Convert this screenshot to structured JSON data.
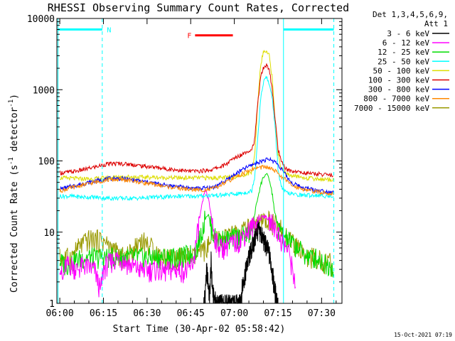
{
  "chart_data": {
    "type": "line",
    "title": "RHESSI Observing Summary Count Rates, Corrected",
    "xlabel": "Start Time (30-Apr-02 05:58:42)",
    "ylabel_prefix": "Corrected Count Rate (s",
    "ylabel_sup": "-1",
    "ylabel_suffix": " detector",
    "ylabel_suffix_sup": "-1",
    "ylabel_close": ")",
    "yscale": "log",
    "xlim": [
      359,
      457
    ],
    "ylim": [
      1,
      10000
    ],
    "x_ticks": [
      {
        "t": 360,
        "label": "06:00"
      },
      {
        "t": 375,
        "label": "06:15"
      },
      {
        "t": 390,
        "label": "06:30"
      },
      {
        "t": 405,
        "label": "06:45"
      },
      {
        "t": 420,
        "label": "07:00"
      },
      {
        "t": 435,
        "label": "07:15"
      },
      {
        "t": 450,
        "label": "07:30"
      }
    ],
    "y_ticks": [
      {
        "v": 1,
        "label": "1"
      },
      {
        "v": 10,
        "label": "10"
      },
      {
        "v": 100,
        "label": "100"
      },
      {
        "v": 1000,
        "label": "1000"
      },
      {
        "v": 10000,
        "label": "10000"
      }
    ],
    "legend_header": [
      "Det 1,3,4,5,6,9,",
      "Att 1"
    ],
    "series": [
      {
        "name": "3 - 6 keV",
        "color": "#000000",
        "x": [
          409.5,
          410,
          410.5,
          411,
          411.5,
          412,
          412.5,
          413,
          414,
          416,
          418,
          420,
          421,
          422,
          422.5,
          423,
          424,
          425,
          426,
          427,
          428,
          429,
          430,
          431,
          432,
          433,
          433.5,
          434,
          435
        ],
        "y": [
          1,
          1.5,
          3,
          2,
          1.2,
          4,
          1.5,
          1.2,
          1,
          1,
          1,
          1,
          1,
          1,
          1.5,
          2,
          3,
          4.5,
          6,
          8,
          11,
          10,
          8,
          6.5,
          5,
          3,
          2,
          1.5,
          1
        ]
      },
      {
        "name": "6 - 12 keV",
        "color": "#ff00ff",
        "x": [
          360,
          361,
          362,
          364,
          366,
          368,
          370,
          372,
          374,
          375,
          376,
          378,
          380,
          382,
          384,
          386,
          388,
          390,
          392,
          394,
          396,
          398,
          400,
          402,
          404,
          406,
          407,
          408,
          409,
          410,
          411,
          412,
          413,
          414,
          416,
          418,
          420,
          422,
          424,
          426,
          428,
          430,
          432,
          434,
          436,
          437,
          438,
          439,
          440,
          441
        ],
        "y": [
          4,
          2,
          3.5,
          3.5,
          3,
          3.5,
          3.2,
          3,
          1.5,
          3,
          3.5,
          4,
          4.5,
          4,
          3.5,
          3.2,
          3,
          3,
          3,
          3,
          2.8,
          3,
          3,
          3,
          2.8,
          4,
          8,
          15,
          25,
          40,
          30,
          18,
          10,
          7,
          6,
          7,
          7,
          8,
          10,
          12,
          14,
          17,
          15,
          12,
          8,
          7,
          6,
          5,
          3,
          2
        ]
      },
      {
        "name": "12 - 25 keV",
        "color": "#00dd00",
        "x": [
          360,
          362,
          365,
          368,
          370,
          372,
          374,
          376,
          378,
          380,
          382,
          384,
          386,
          388,
          390,
          392,
          394,
          396,
          398,
          400,
          402,
          404,
          406,
          407,
          408,
          409,
          410,
          411,
          412,
          413,
          414,
          416,
          418,
          420,
          422,
          424,
          426,
          427,
          428,
          429,
          430,
          431,
          432,
          433,
          434,
          435,
          436,
          438,
          440,
          442,
          444,
          446,
          448,
          450,
          452,
          454
        ],
        "y": [
          4,
          3.5,
          4,
          4.5,
          4.5,
          4.5,
          4.5,
          4.5,
          4.5,
          4.5,
          4.5,
          4.5,
          4.5,
          4.5,
          4.5,
          4.5,
          4.5,
          4.5,
          4.5,
          4.5,
          4.5,
          5,
          5,
          6,
          8,
          11,
          16,
          18,
          12,
          9,
          8,
          8,
          8,
          8.5,
          9,
          9,
          10,
          18,
          30,
          45,
          60,
          65,
          55,
          35,
          18,
          12,
          10,
          8,
          7,
          6,
          5,
          4.5,
          4.5,
          4,
          3.5,
          3.5
        ]
      },
      {
        "name": "25 - 50 keV",
        "color": "#00ffff",
        "x": [
          360,
          364,
          368,
          372,
          376,
          380,
          384,
          388,
          392,
          396,
          400,
          404,
          408,
          412,
          416,
          418,
          420,
          422,
          424,
          426,
          427,
          428,
          429,
          430,
          431,
          432,
          433,
          434,
          435,
          436,
          437,
          438,
          440,
          444,
          448,
          452,
          454
        ],
        "y": [
          32,
          32,
          31,
          31,
          30,
          30,
          30,
          30,
          31,
          31,
          32,
          32,
          32,
          33,
          33,
          34,
          34,
          35,
          36,
          38,
          60,
          200,
          700,
          1300,
          1500,
          1200,
          800,
          300,
          80,
          45,
          38,
          36,
          34,
          33,
          33,
          32,
          32
        ]
      },
      {
        "name": "50 - 100 keV",
        "color": "#dddd00",
        "x": [
          360,
          364,
          368,
          372,
          376,
          380,
          384,
          388,
          392,
          396,
          400,
          404,
          408,
          412,
          416,
          418,
          420,
          422,
          424,
          426,
          427,
          428,
          429,
          430,
          431,
          432,
          433,
          434,
          435,
          436,
          437,
          438,
          440,
          444,
          448,
          452,
          454
        ],
        "y": [
          58,
          57,
          56,
          56,
          58,
          60,
          60,
          59,
          59,
          58,
          58,
          58,
          58,
          58,
          58,
          59,
          60,
          62,
          65,
          70,
          120,
          600,
          2200,
          3400,
          3500,
          3000,
          1500,
          400,
          130,
          80,
          70,
          65,
          62,
          58,
          56,
          55,
          55
        ]
      },
      {
        "name": "100 - 300 keV",
        "color": "#dd0000",
        "x": [
          360,
          364,
          368,
          372,
          376,
          380,
          384,
          388,
          392,
          396,
          400,
          404,
          408,
          412,
          416,
          418,
          420,
          422,
          424,
          426,
          427,
          428,
          429,
          430,
          431,
          432,
          433,
          434,
          435,
          436,
          437,
          438,
          440,
          444,
          448,
          452,
          454
        ],
        "y": [
          68,
          70,
          75,
          82,
          90,
          92,
          90,
          85,
          82,
          78,
          75,
          72,
          72,
          75,
          85,
          95,
          110,
          120,
          135,
          145,
          200,
          600,
          1500,
          2000,
          2200,
          2000,
          1000,
          400,
          150,
          100,
          85,
          75,
          72,
          68,
          66,
          64,
          63
        ]
      },
      {
        "name": "300 - 800 keV",
        "color": "#0000ff",
        "x": [
          360,
          364,
          368,
          372,
          376,
          380,
          384,
          388,
          392,
          396,
          400,
          404,
          408,
          412,
          414,
          416,
          418,
          420,
          422,
          424,
          426,
          428,
          430,
          432,
          434,
          436,
          438,
          440,
          444,
          448,
          452,
          454
        ],
        "y": [
          40,
          44,
          48,
          52,
          56,
          57,
          55,
          52,
          49,
          46,
          44,
          42,
          41,
          42,
          45,
          50,
          56,
          64,
          72,
          80,
          88,
          95,
          102,
          105,
          98,
          80,
          60,
          48,
          42,
          39,
          37,
          37
        ]
      },
      {
        "name": "800 - 7000 keV",
        "color": "#ff8800",
        "x": [
          360,
          364,
          368,
          372,
          376,
          380,
          384,
          388,
          392,
          396,
          400,
          404,
          408,
          412,
          414,
          416,
          418,
          420,
          422,
          424,
          426,
          428,
          430,
          432,
          434,
          436,
          438,
          440,
          444,
          448,
          452,
          454
        ],
        "y": [
          38,
          42,
          46,
          50,
          54,
          55,
          53,
          50,
          47,
          44,
          42,
          40,
          39,
          40,
          43,
          47,
          52,
          58,
          64,
          70,
          76,
          80,
          82,
          80,
          72,
          62,
          52,
          45,
          40,
          37,
          35,
          35
        ]
      },
      {
        "name": "7000 - 15000 keV",
        "color": "#999900",
        "x": [
          360,
          362,
          364,
          366,
          368,
          370,
          372,
          374,
          376,
          378,
          380,
          382,
          384,
          386,
          388,
          390,
          392,
          394,
          396,
          398,
          400,
          402,
          404,
          406,
          408,
          410,
          412,
          414,
          416,
          418,
          420,
          422,
          424,
          426,
          428,
          430,
          432,
          434,
          436,
          438,
          440,
          442,
          444,
          446,
          448,
          450,
          452,
          454
        ],
        "y": [
          4.5,
          4.5,
          4.5,
          6,
          7,
          8,
          8,
          8,
          7,
          6,
          5,
          4.5,
          5,
          6.5,
          8,
          7,
          6,
          5,
          4.5,
          4.5,
          4.5,
          4.5,
          4.5,
          4.5,
          5,
          6,
          7,
          8,
          8.5,
          9,
          10,
          10,
          11,
          12,
          13,
          14,
          15,
          13,
          11,
          9,
          7,
          6,
          5,
          4.5,
          4.5,
          4,
          4,
          3.5
        ]
      }
    ],
    "vlines": [
      {
        "t": 359.4,
        "style": "solid"
      },
      {
        "t": 374.6,
        "style": "dashed"
      },
      {
        "t": 436.9,
        "style": "solid"
      },
      {
        "t": 454.2,
        "style": "dashed"
      }
    ],
    "intervals": [
      {
        "t0": 359.4,
        "t1": 374.6,
        "v": 7000,
        "color": "#00ffff",
        "label": "N",
        "label_t": 376.2
      },
      {
        "t0": 436.9,
        "t1": 454.2,
        "v": 7000,
        "color": "#00ffff",
        "label": "",
        "label_t": 436.9
      },
      {
        "t0": 406.5,
        "t1": 419.5,
        "v": 5800,
        "color": "#ff0000",
        "label": "F",
        "label_t": 403.8
      }
    ],
    "timestamp": "15-Oct-2021 07:19",
    "legend_position": "right",
    "grid": false
  },
  "colors": {
    "axis": "#000000",
    "background": "#ffffff",
    "flag": "#00ffff"
  }
}
